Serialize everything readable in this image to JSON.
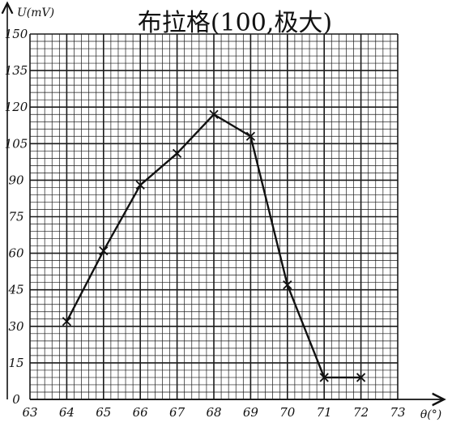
{
  "chart_data": {
    "type": "line",
    "title": "布拉格(100,极大)",
    "xlabel": "θ(°)",
    "ylabel": "U(mV)",
    "xlim": [
      63,
      73
    ],
    "ylim": [
      0,
      150
    ],
    "x_ticks": [
      "63",
      "64",
      "65",
      "66",
      "67",
      "68",
      "69",
      "70",
      "71",
      "72",
      "73"
    ],
    "y_ticks": [
      "0",
      "15",
      "30",
      "45",
      "60",
      "75",
      "90",
      "105",
      "120",
      "135",
      "150"
    ],
    "grid": true,
    "series": [
      {
        "x": [
          64,
          65,
          66,
          67,
          68,
          69,
          70,
          71,
          72
        ],
        "y": [
          32,
          61,
          88,
          101,
          117,
          108,
          47,
          9,
          9
        ]
      }
    ]
  }
}
